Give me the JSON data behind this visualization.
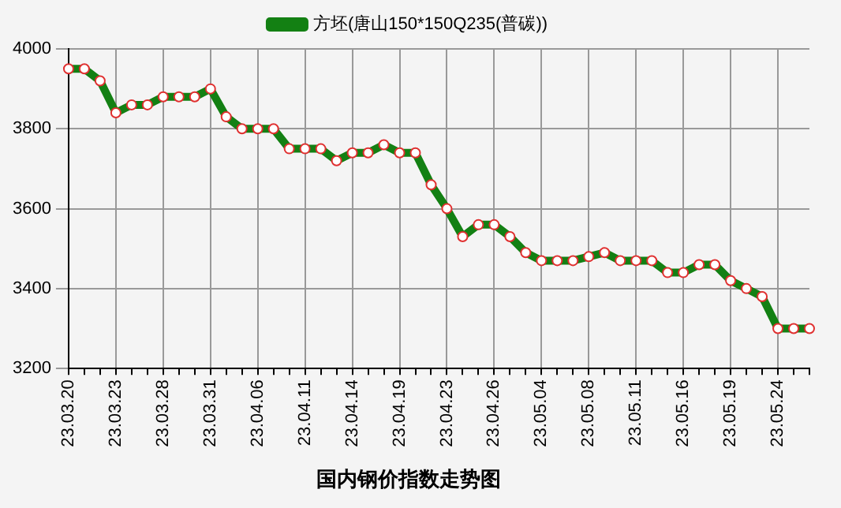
{
  "chart_data": {
    "type": "line",
    "title": "国内钢价指数走势图",
    "categories": [
      "23.03.20",
      null,
      null,
      "23.03.23",
      null,
      null,
      "23.03.28",
      null,
      null,
      "23.03.31",
      null,
      null,
      "23.04.06",
      null,
      null,
      "23.04.11",
      null,
      null,
      "23.04.14",
      null,
      null,
      "23.04.19",
      null,
      null,
      "23.04.23",
      null,
      null,
      "23.04.26",
      null,
      null,
      "23.05.04",
      null,
      null,
      "23.05.08",
      null,
      null,
      "23.05.11",
      null,
      null,
      "23.05.16",
      null,
      null,
      "23.05.19",
      null,
      null,
      "23.05.24",
      null,
      null
    ],
    "series": [
      {
        "name": "方坯(唐山150*150Q235(普碳))",
        "color": "#138013",
        "values": [
          3950,
          3950,
          3920,
          3840,
          3860,
          3860,
          3880,
          3880,
          3880,
          3900,
          3830,
          3800,
          3800,
          3800,
          3750,
          3750,
          3750,
          3720,
          3740,
          3740,
          3760,
          3740,
          3740,
          3660,
          3600,
          3530,
          3560,
          3560,
          3530,
          3490,
          3470,
          3470,
          3470,
          3480,
          3490,
          3470,
          3470,
          3470,
          3440,
          3440,
          3460,
          3460,
          3420,
          3400,
          3380,
          3300,
          3300,
          3300
        ]
      }
    ],
    "ylim": [
      3200,
      4000
    ],
    "yticks": [
      3200,
      3400,
      3600,
      3800,
      4000
    ],
    "grid": true,
    "legend": "top",
    "marker": "circle",
    "line_style": "solid"
  }
}
